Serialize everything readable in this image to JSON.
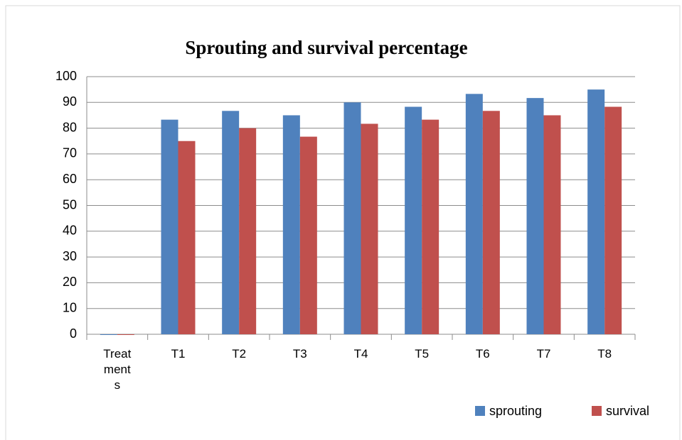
{
  "chart_data": {
    "type": "bar",
    "title": "Sprouting and survival percentage",
    "categories": [
      "Treatments",
      "T1",
      "T2",
      "T3",
      "T4",
      "T5",
      "T6",
      "T7",
      "T8"
    ],
    "series": [
      {
        "name": "sprouting",
        "color": "#4f81bd",
        "values": [
          0,
          83.3,
          86.7,
          85,
          90,
          88.3,
          93.3,
          91.7,
          95
        ]
      },
      {
        "name": "survival",
        "color": "#c0504d",
        "values": [
          0,
          75,
          80,
          76.7,
          81.7,
          83.3,
          86.7,
          85,
          88.3
        ]
      }
    ],
    "ylim": [
      0,
      100
    ],
    "yticks": [
      0,
      10,
      20,
      30,
      40,
      50,
      60,
      70,
      80,
      90,
      100
    ],
    "grid": true,
    "legend": "bottom-right"
  }
}
